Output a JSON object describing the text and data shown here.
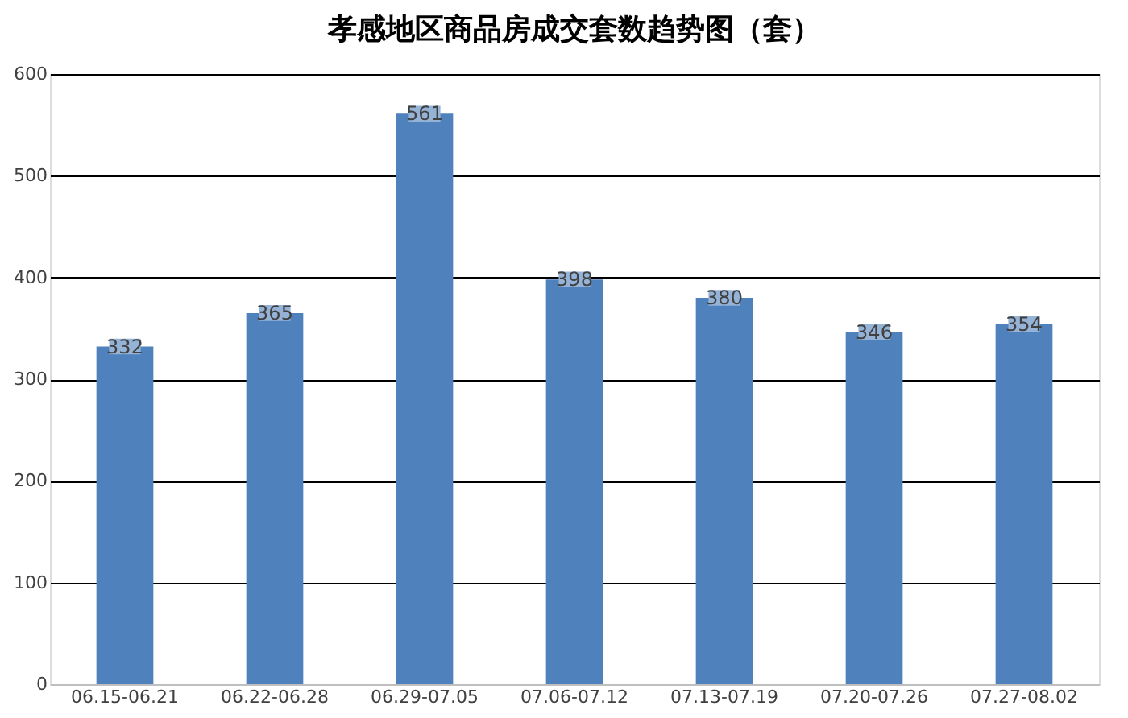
{
  "chart_data": {
    "type": "bar",
    "title": "孝感地区商品房成交套数趋势图（套）",
    "categories": [
      "06.15-06.21",
      "06.22-06.28",
      "06.29-07.05",
      "07.06-07.12",
      "07.13-07.19",
      "07.20-07.26",
      "07.27-08.02"
    ],
    "values": [
      332,
      365,
      561,
      398,
      380,
      346,
      354
    ],
    "color": "#4f81bd",
    "ylim": [
      0,
      600
    ],
    "yticks": [
      0,
      100,
      200,
      300,
      400,
      500,
      600
    ],
    "grid": "y",
    "data_labels": true
  }
}
